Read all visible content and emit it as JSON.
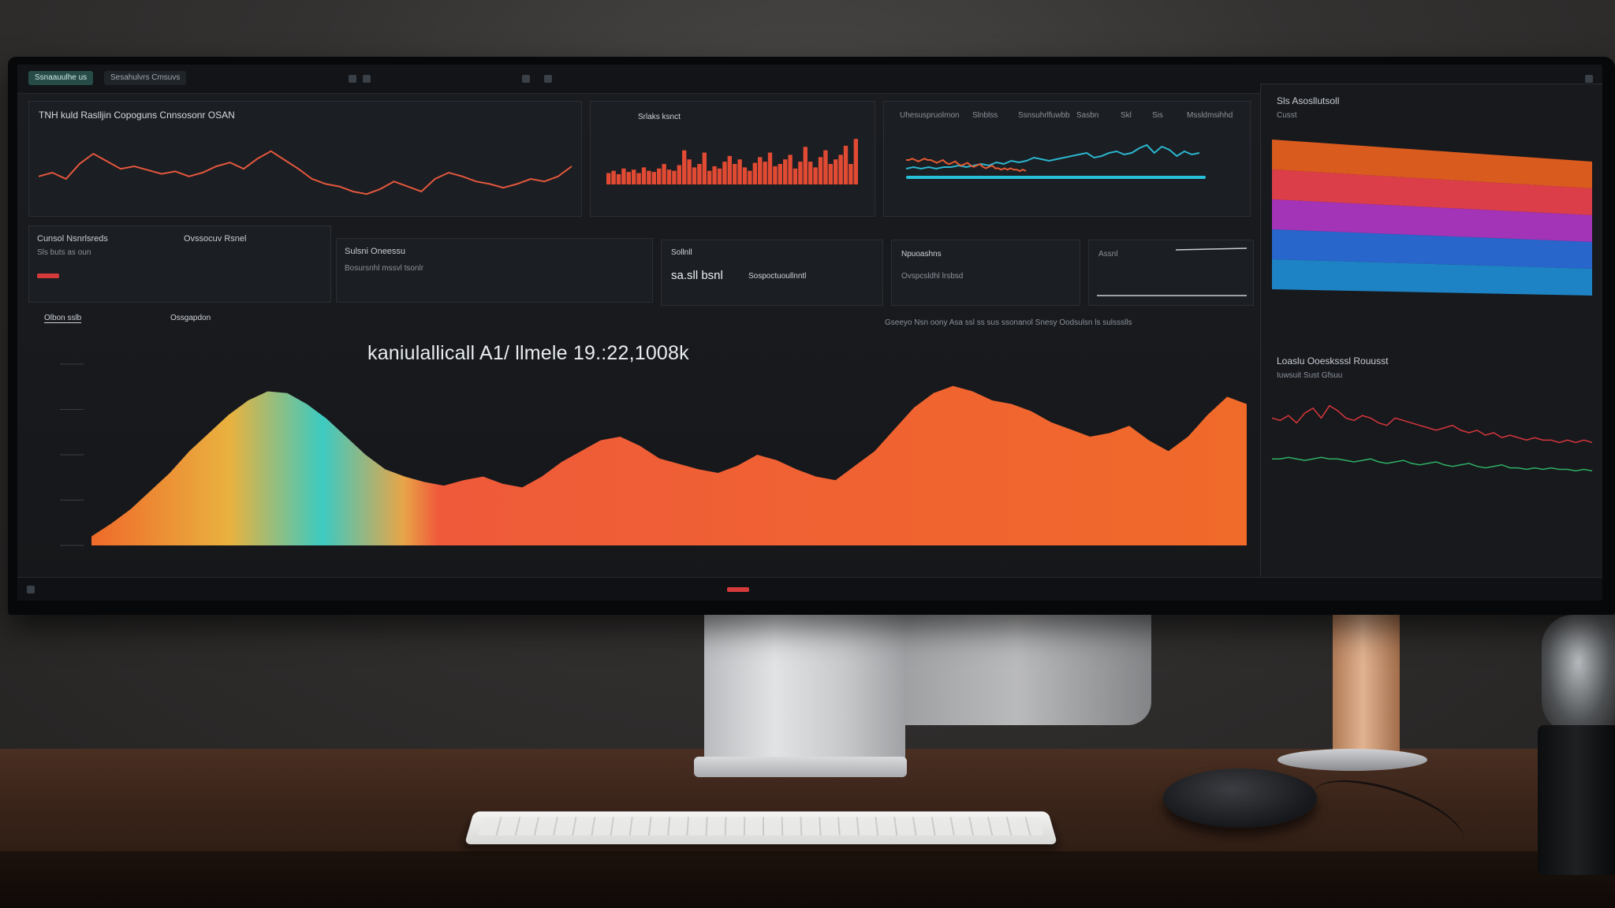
{
  "window": {
    "tabs": [
      "Ssnaauulhe us",
      "Sesahulvrs Cmsuvs"
    ]
  },
  "overview_panel": {
    "title": "TNH kuld Raslljin Copoguns Cnnsosonr OSAN"
  },
  "spark_panel": {
    "title": "Srlaks ksnct"
  },
  "cyan_panel": {
    "labels": [
      "Uhesuspruolmon",
      "Slnblss",
      "Ssnsuhrlfuwbb",
      "Sasbn",
      "Skl",
      "Sis",
      "Mssldmsihhd"
    ]
  },
  "side_panel": {
    "title": "Sls Asosllutsoll",
    "subtitle": "Cusst",
    "band_colors": [
      "#f0631f",
      "#f2434f",
      "#b336c9",
      "#2a6fe0",
      "#1f8fd8"
    ],
    "lower_title": "Loaslu Ooesksssl Rouusst",
    "lower_subtitle": "Iuwsuit Sust Gfsuu"
  },
  "cards": {
    "status_title": "Cunsol Nsnrlsreds",
    "status_subtitle": "Ovssocuv Rsnel",
    "status_note": "Sls buts as oun",
    "sales_title": "Sulsni Oneessu",
    "sales_line": "Bosursnhl mssvl tsonlr",
    "kpi_title": "Sollnll",
    "kpi_value": "sa.sll bsnl",
    "kpi_side": "Sospoctuoullnntl",
    "meta_title": "Npuoashns",
    "meta_note": "Ovspcsldhl lrsbsd",
    "mini_title": "Assnl"
  },
  "main_chart": {
    "tabs": [
      "Olbon sslb",
      "Ossgapdon"
    ],
    "headline": "kaniulallicall A1/ llmele 19.:22,1008k",
    "caption": "Gseeyo Nsn oony Asa ssl ss sus ssonanol Snesy Oodsulsn ls sulssslls"
  },
  "chart_data": [
    {
      "type": "line",
      "x": [
        0,
        1,
        2,
        3,
        4,
        5,
        6,
        7,
        8,
        9,
        10,
        11,
        12,
        13,
        14,
        15,
        16,
        17,
        18,
        19,
        20,
        21,
        22,
        23,
        24,
        25,
        26,
        27,
        28,
        29,
        30,
        31,
        32,
        33,
        34,
        35,
        36,
        37,
        38,
        39
      ],
      "values": [
        52,
        55,
        50,
        62,
        70,
        64,
        58,
        60,
        57,
        54,
        56,
        52,
        55,
        60,
        63,
        58,
        66,
        72,
        65,
        58,
        50,
        46,
        44,
        40,
        38,
        42,
        48,
        44,
        40,
        50,
        55,
        52,
        48,
        46,
        43,
        46,
        50,
        48,
        52,
        60
      ],
      "ylim": [
        30,
        80
      ]
    },
    {
      "type": "bar",
      "x": [
        0,
        1,
        2,
        3,
        4,
        5,
        6,
        7,
        8,
        9,
        10,
        11,
        12,
        13,
        14,
        15,
        16,
        17,
        18,
        19,
        20,
        21,
        22,
        23,
        24,
        25,
        26,
        27,
        28,
        29,
        30,
        31,
        32,
        33,
        34,
        35,
        36,
        37,
        38,
        39,
        40,
        41,
        42,
        43,
        44,
        45,
        46,
        47,
        48,
        49
      ],
      "values": [
        10,
        12,
        9,
        14,
        11,
        13,
        10,
        15,
        12,
        11,
        14,
        18,
        13,
        12,
        17,
        30,
        22,
        15,
        18,
        28,
        12,
        16,
        14,
        20,
        25,
        18,
        22,
        15,
        12,
        19,
        24,
        20,
        28,
        16,
        18,
        22,
        26,
        14,
        20,
        33,
        20,
        15,
        24,
        30,
        18,
        22,
        26,
        34,
        18,
        40
      ],
      "ylim": [
        0,
        45
      ]
    },
    {
      "type": "area",
      "x": [
        0,
        1,
        2,
        3,
        4,
        5,
        6,
        7,
        8,
        9,
        10,
        11,
        12,
        13,
        14,
        15,
        16,
        17,
        18,
        19,
        20,
        21,
        22,
        23,
        24,
        25,
        26,
        27,
        28,
        29,
        30,
        31,
        32,
        33,
        34,
        35,
        36,
        37,
        38,
        39,
        40,
        41,
        42,
        43,
        44,
        45,
        46,
        47,
        48,
        49,
        50,
        51,
        52,
        53,
        54,
        55,
        56,
        57,
        58,
        59
      ],
      "values": [
        5,
        12,
        20,
        30,
        40,
        52,
        62,
        72,
        80,
        85,
        84,
        78,
        70,
        60,
        50,
        42,
        38,
        35,
        33,
        36,
        38,
        34,
        32,
        38,
        46,
        52,
        58,
        60,
        55,
        48,
        45,
        42,
        40,
        44,
        50,
        47,
        42,
        38,
        36,
        44,
        52,
        64,
        76,
        84,
        88,
        85,
        80,
        78,
        74,
        68,
        64,
        60,
        62,
        66,
        58,
        52,
        60,
        72,
        82,
        78
      ],
      "segment_colors": [
        "#ef6a2a",
        "#e9b23f",
        "#6cc7a6",
        "#21b8c4"
      ],
      "ylim": [
        0,
        100
      ]
    },
    {
      "type": "line",
      "x": [
        0,
        1,
        2,
        3,
        4,
        5,
        6,
        7,
        8,
        9,
        10,
        11,
        12,
        13,
        14,
        15,
        16,
        17,
        18,
        19,
        20,
        21,
        22,
        23,
        24,
        25,
        26,
        27,
        28,
        29,
        30,
        31,
        32,
        33,
        34,
        35,
        36,
        37,
        38,
        39
      ],
      "series": [
        {
          "values": [
            30,
            28,
            32,
            26,
            34,
            38,
            30,
            40,
            36,
            30,
            28,
            32,
            30,
            26,
            24,
            30,
            28,
            26,
            24,
            22,
            20,
            22,
            24,
            20,
            18,
            20,
            16,
            18,
            14,
            16,
            14,
            12,
            14,
            12,
            12,
            10,
            12,
            10,
            12,
            10
          ]
        },
        {
          "values": [
            12,
            12,
            13,
            12,
            11,
            12,
            13,
            12,
            12,
            11,
            10,
            11,
            12,
            10,
            9,
            10,
            11,
            9,
            8,
            9,
            10,
            8,
            7,
            8,
            9,
            7,
            6,
            7,
            8,
            6,
            6,
            5,
            6,
            5,
            6,
            5,
            5,
            4,
            5,
            4
          ]
        }
      ],
      "ylim": [
        0,
        45
      ]
    }
  ]
}
